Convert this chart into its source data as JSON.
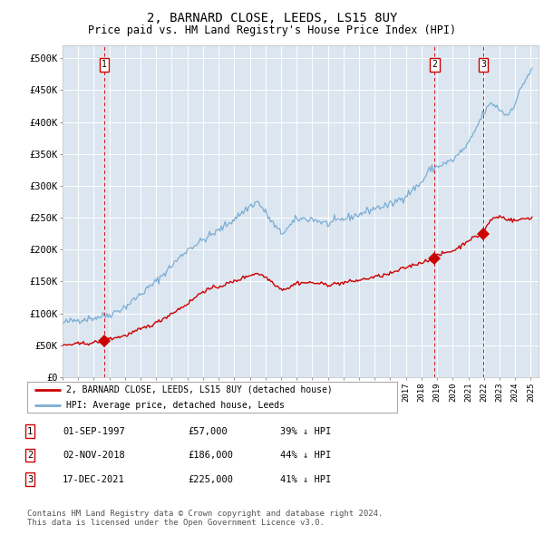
{
  "title": "2, BARNARD CLOSE, LEEDS, LS15 8UY",
  "subtitle": "Price paid vs. HM Land Registry's House Price Index (HPI)",
  "title_fontsize": 10,
  "subtitle_fontsize": 8.5,
  "bg_color": "#dce6f0",
  "plot_bg_color": "#dce6f0",
  "fig_bg_color": "#ffffff",
  "yticks": [
    0,
    50000,
    100000,
    150000,
    200000,
    250000,
    300000,
    350000,
    400000,
    450000,
    500000
  ],
  "ytick_labels": [
    "£0",
    "£50K",
    "£100K",
    "£150K",
    "£200K",
    "£250K",
    "£300K",
    "£350K",
    "£400K",
    "£450K",
    "£500K"
  ],
  "ylim": [
    0,
    520000
  ],
  "red_line_color": "#cc0000",
  "blue_line_color": "#7aadd4",
  "vline_color": "#cc0000",
  "sale_points": [
    {
      "date_index": 1997.67,
      "price": 57000,
      "label": "1"
    },
    {
      "date_index": 2018.84,
      "price": 186000,
      "label": "2"
    },
    {
      "date_index": 2021.96,
      "price": 225000,
      "label": "3"
    }
  ],
  "legend_entries": [
    "2, BARNARD CLOSE, LEEDS, LS15 8UY (detached house)",
    "HPI: Average price, detached house, Leeds"
  ],
  "table_rows": [
    [
      "1",
      "01-SEP-1997",
      "£57,000",
      "39% ↓ HPI"
    ],
    [
      "2",
      "02-NOV-2018",
      "£186,000",
      "44% ↓ HPI"
    ],
    [
      "3",
      "17-DEC-2021",
      "£225,000",
      "41% ↓ HPI"
    ]
  ],
  "footnote": "Contains HM Land Registry data © Crown copyright and database right 2024.\nThis data is licensed under the Open Government Licence v3.0.",
  "footnote_fontsize": 6.5
}
